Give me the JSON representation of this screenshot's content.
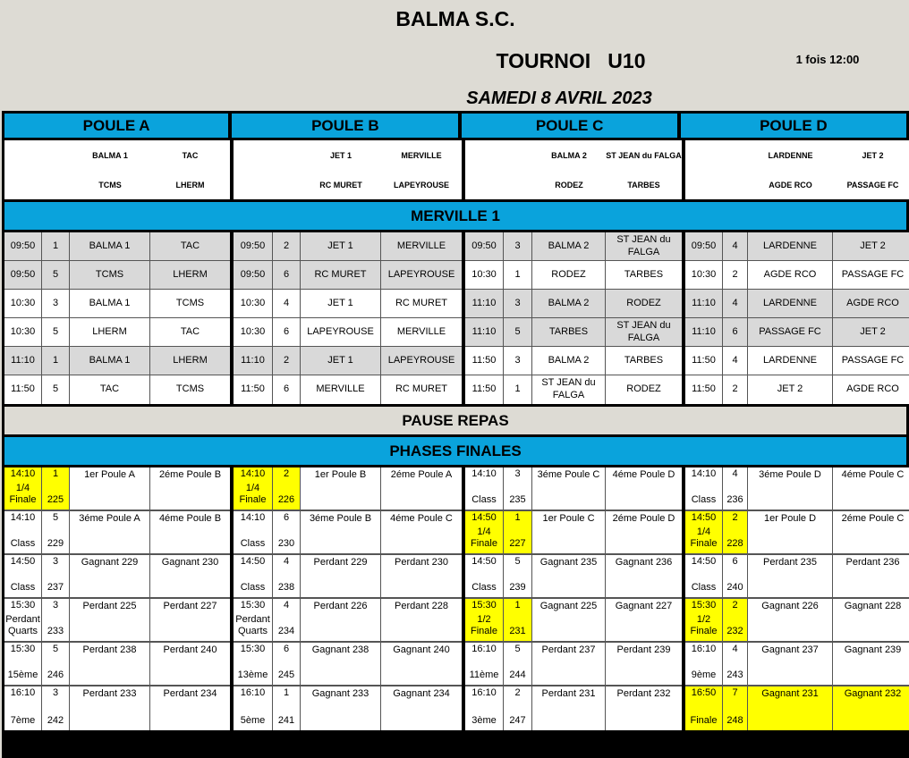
{
  "header": {
    "club": "BALMA S.C.",
    "tournament": "TOURNOI   U10",
    "note": "1 fois 12:00",
    "date": "SAMEDI 8 AVRIL 2023"
  },
  "colors": {
    "blue": "#0aa3dc",
    "highlight": "#ffff00",
    "gray_row": "#d9d9d9"
  },
  "poules": [
    {
      "name": "POULE A",
      "teams": [
        [
          "BALMA 1",
          "TAC"
        ],
        [
          "TCMS",
          "LHERM"
        ]
      ]
    },
    {
      "name": "POULE B",
      "teams": [
        [
          "JET 1",
          "MERVILLE"
        ],
        [
          "RC MURET",
          "LAPEYROUSE"
        ]
      ]
    },
    {
      "name": "POULE C",
      "teams": [
        [
          "BALMA 2",
          "ST JEAN du FALGA"
        ],
        [
          "RODEZ",
          "TARBES"
        ]
      ]
    },
    {
      "name": "POULE D",
      "teams": [
        [
          "LARDENNE",
          "JET 2"
        ],
        [
          "AGDE RCO",
          "PASSAGE FC"
        ]
      ]
    }
  ],
  "venue": "MERVILLE 1",
  "matches": [
    [
      [
        "09:50",
        "1",
        "BALMA 1",
        "TAC",
        1
      ],
      [
        "09:50",
        "5",
        "TCMS",
        "LHERM",
        1
      ],
      [
        "10:30",
        "3",
        "BALMA 1",
        "TCMS",
        0
      ],
      [
        "10:30",
        "5",
        "LHERM",
        "TAC",
        0
      ],
      [
        "11:10",
        "1",
        "BALMA 1",
        "LHERM",
        1
      ],
      [
        "11:50",
        "5",
        "TAC",
        "TCMS",
        0
      ]
    ],
    [
      [
        "09:50",
        "2",
        "JET 1",
        "MERVILLE",
        1
      ],
      [
        "09:50",
        "6",
        "RC MURET",
        "LAPEYROUSE",
        1
      ],
      [
        "10:30",
        "4",
        "JET 1",
        "RC MURET",
        0
      ],
      [
        "10:30",
        "6",
        "LAPEYROUSE",
        "MERVILLE",
        0
      ],
      [
        "11:10",
        "2",
        "JET 1",
        "LAPEYROUSE",
        1
      ],
      [
        "11:50",
        "6",
        "MERVILLE",
        "RC MURET",
        0
      ]
    ],
    [
      [
        "09:50",
        "3",
        "BALMA 2",
        "ST JEAN du FALGA",
        1
      ],
      [
        "10:30",
        "1",
        "RODEZ",
        "TARBES",
        0
      ],
      [
        "11:10",
        "3",
        "BALMA 2",
        "RODEZ",
        1
      ],
      [
        "11:10",
        "5",
        "TARBES",
        "ST JEAN du FALGA",
        1
      ],
      [
        "11:50",
        "3",
        "BALMA 2",
        "TARBES",
        0
      ],
      [
        "11:50",
        "1",
        "ST JEAN du FALGA",
        "RODEZ",
        0
      ]
    ],
    [
      [
        "09:50",
        "4",
        "LARDENNE",
        "JET 2",
        1
      ],
      [
        "10:30",
        "2",
        "AGDE RCO",
        "PASSAGE FC",
        0
      ],
      [
        "11:10",
        "4",
        "LARDENNE",
        "AGDE RCO",
        1
      ],
      [
        "11:10",
        "6",
        "PASSAGE FC",
        "JET 2",
        1
      ],
      [
        "11:50",
        "4",
        "LARDENNE",
        "PASSAGE FC",
        0
      ],
      [
        "11:50",
        "2",
        "JET 2",
        "AGDE RCO",
        0
      ]
    ]
  ],
  "pause": "PAUSE REPAS",
  "finals_title": "PHASES FINALES",
  "finals": [
    [
      [
        "14:10",
        "1/4 Finale",
        "1",
        "225",
        "1er Poule A",
        "2éme Poule B",
        1
      ],
      [
        "14:10",
        "Class",
        "5",
        "229",
        "3éme Poule A",
        "4éme Poule B",
        0
      ],
      [
        "14:50",
        "Class",
        "3",
        "237",
        "Gagnant 229",
        "Gagnant 230",
        0
      ],
      [
        "15:30",
        "Perdant Quarts",
        "3",
        "233",
        "Perdant 225",
        "Perdant 227",
        0
      ],
      [
        "15:30",
        "15ème",
        "5",
        "246",
        "Perdant 238",
        "Perdant 240",
        0
      ],
      [
        "16:10",
        "7ème",
        "3",
        "242",
        "Perdant 233",
        "Perdant 234",
        0
      ]
    ],
    [
      [
        "14:10",
        "1/4 Finale",
        "2",
        "226",
        "1er Poule B",
        "2éme Poule A",
        1
      ],
      [
        "14:10",
        "Class",
        "6",
        "230",
        "3éme Poule B",
        "4éme Poule C",
        0
      ],
      [
        "14:50",
        "Class",
        "4",
        "238",
        "Perdant 229",
        "Perdant 230",
        0
      ],
      [
        "15:30",
        "Perdant Quarts",
        "4",
        "234",
        "Perdant 226",
        "Perdant 228",
        0
      ],
      [
        "15:30",
        "13ème",
        "6",
        "245",
        "Gagnant 238",
        "Gagnant 240",
        0
      ],
      [
        "16:10",
        "5ème",
        "1",
        "241",
        "Gagnant 233",
        "Gagnant 234",
        0
      ]
    ],
    [
      [
        "14:10",
        "Class",
        "3",
        "235",
        "3éme Poule C",
        "4éme Poule D",
        0
      ],
      [
        "14:50",
        "1/4 Finale",
        "1",
        "227",
        "1er Poule C",
        "2éme Poule D",
        1
      ],
      [
        "14:50",
        "Class",
        "5",
        "239",
        "Gagnant 235",
        "Gagnant 236",
        0
      ],
      [
        "15:30",
        "1/2 Finale",
        "1",
        "231",
        "Gagnant 225",
        "Gagnant 227",
        1
      ],
      [
        "16:10",
        "11ème",
        "5",
        "244",
        "Perdant 237",
        "Perdant 239",
        0
      ],
      [
        "16:10",
        "3ème",
        "2",
        "247",
        "Perdant 231",
        "Perdant 232",
        0
      ]
    ],
    [
      [
        "14:10",
        "Class",
        "4",
        "236",
        "3éme Poule D",
        "4éme Poule C",
        0
      ],
      [
        "14:50",
        "1/4 Finale",
        "2",
        "228",
        "1er Poule D",
        "2éme Poule C",
        1
      ],
      [
        "14:50",
        "Class",
        "6",
        "240",
        "Perdant 235",
        "Perdant 236",
        0
      ],
      [
        "15:30",
        "1/2 Finale",
        "2",
        "232",
        "Gagnant 226",
        "Gagnant 228",
        1
      ],
      [
        "16:10",
        "9ème",
        "4",
        "243",
        "Gagnant 237",
        "Gagnant 239",
        0
      ],
      [
        "16:50",
        "Finale",
        "7",
        "248",
        "Gagnant 231",
        "Gagnant 232",
        2
      ]
    ]
  ]
}
